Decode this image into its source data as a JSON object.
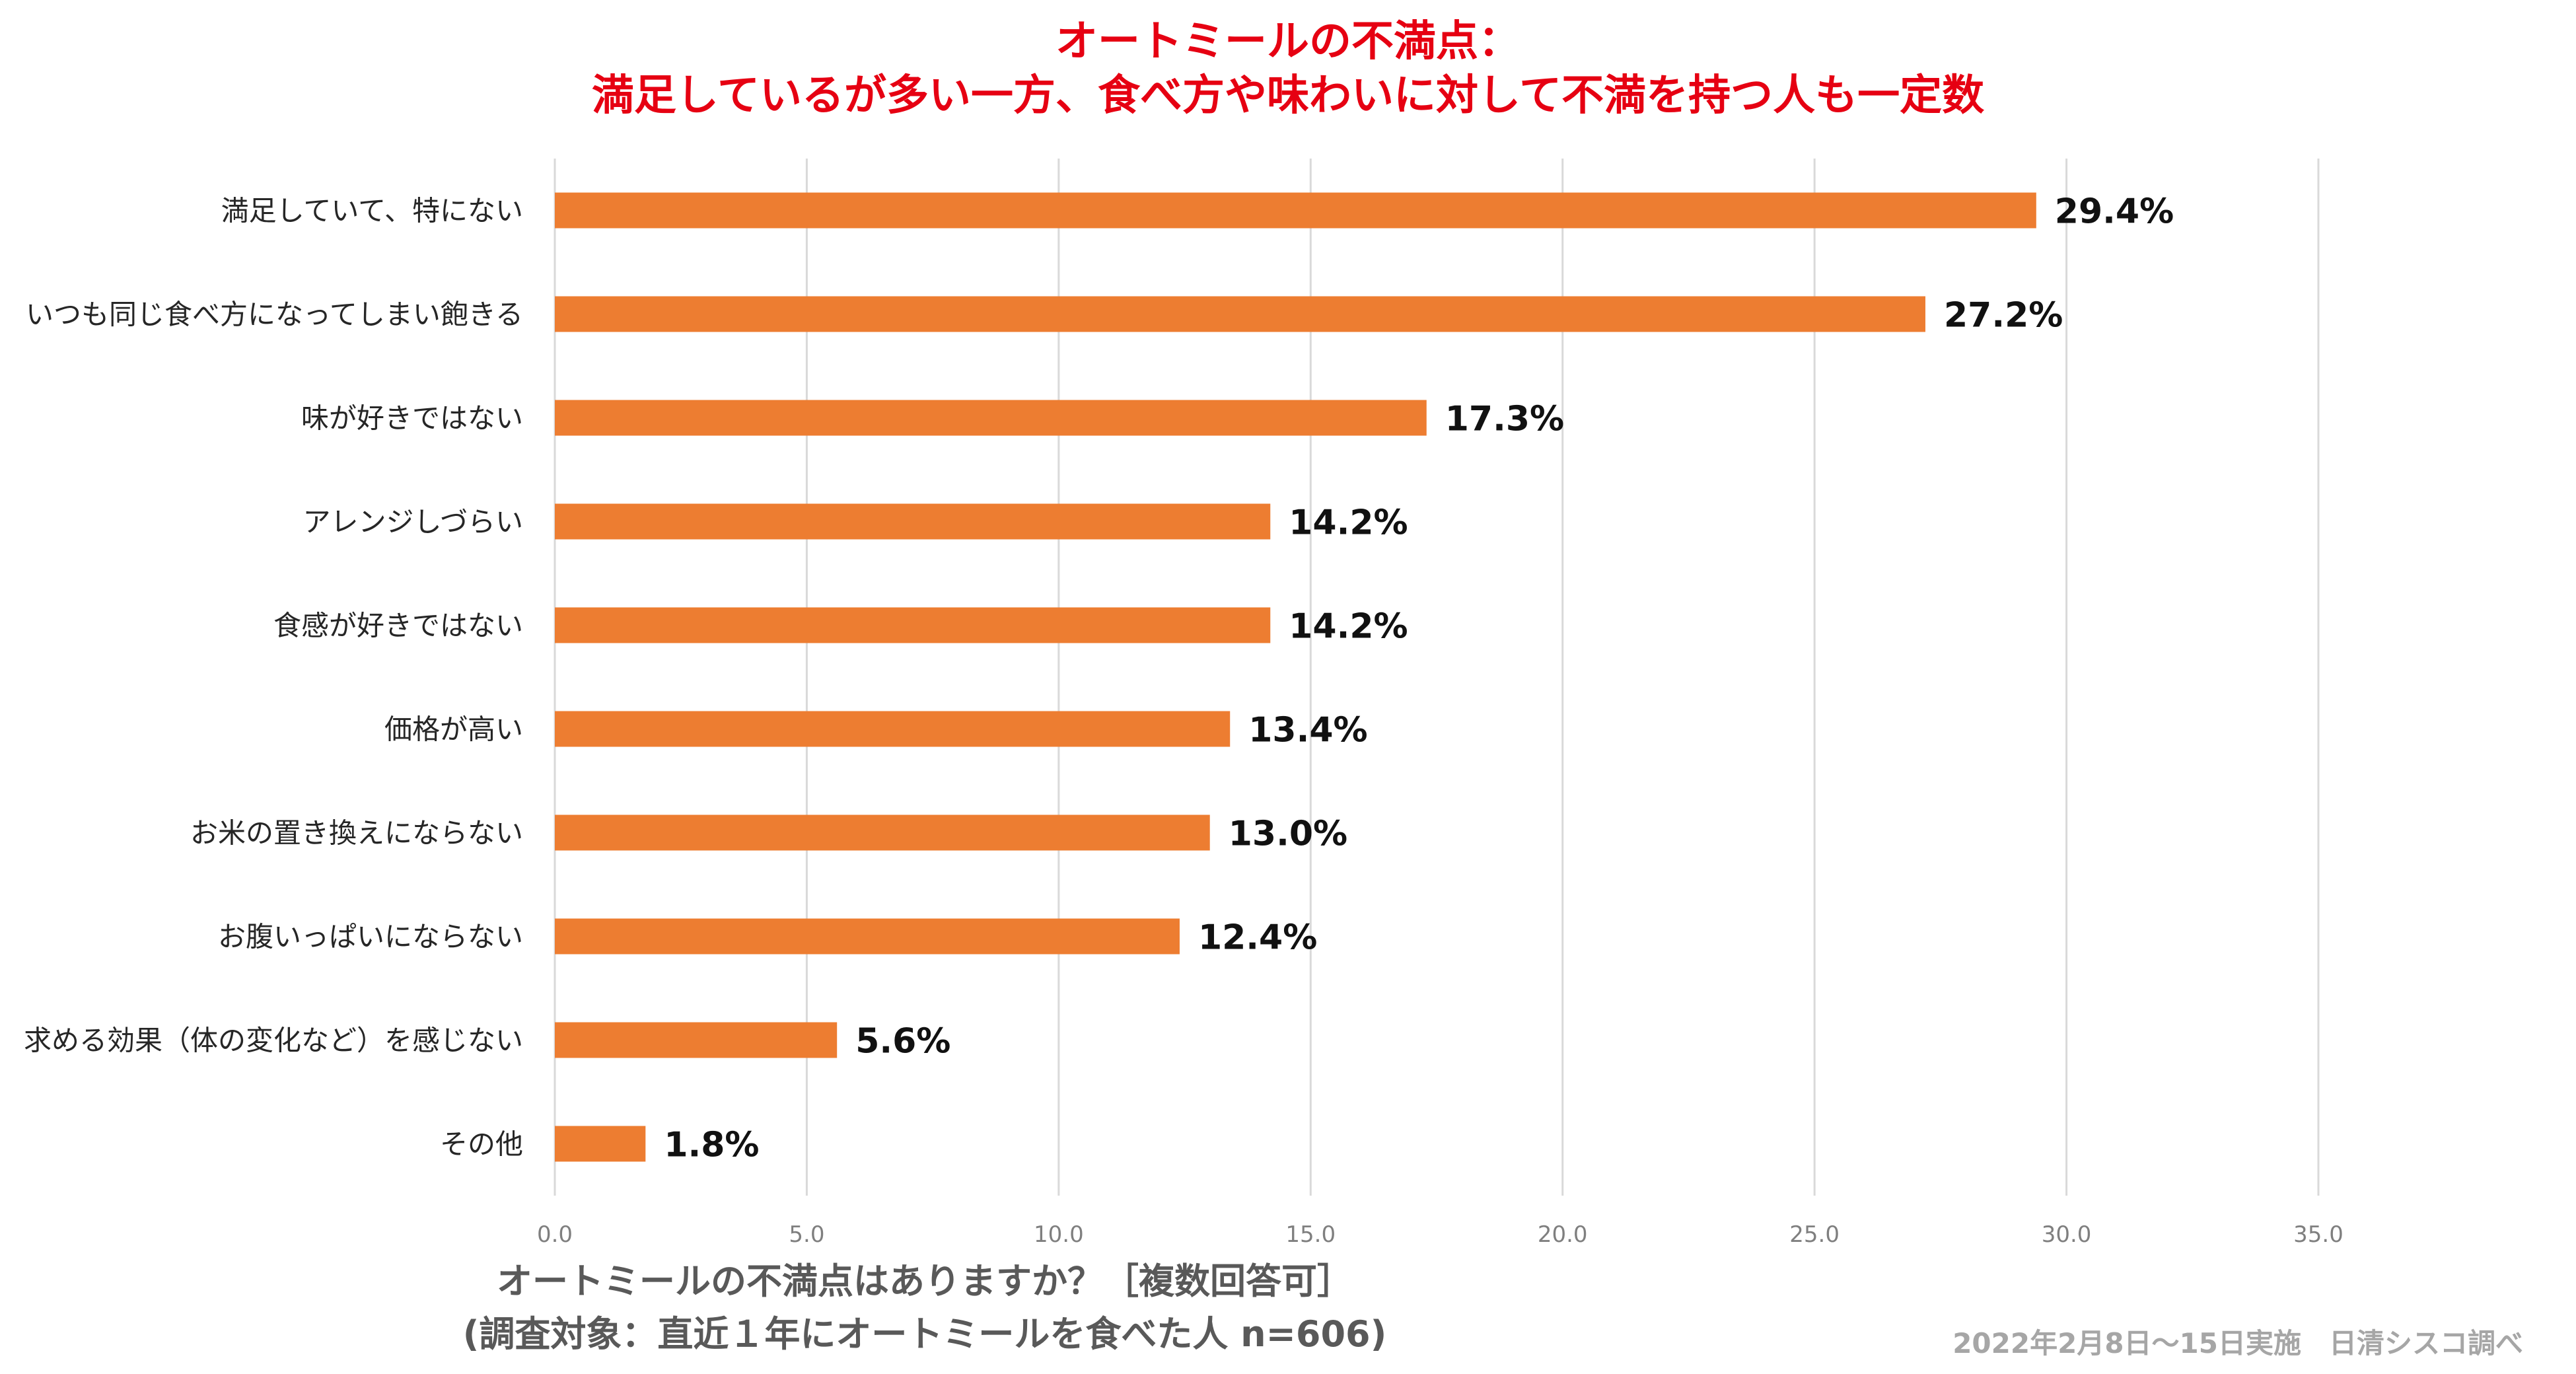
{
  "chart_data": {
    "type": "bar",
    "orientation": "horizontal",
    "title": "オートミールの不満点：",
    "subtitle": "満足しているが多い一方、食べ方や味わいに対して不満を持つ人も一定数",
    "categories": [
      "満足していて、特にない",
      "いつも同じ食べ方になってしまい飽きる",
      "味が好きではない",
      "アレンジしづらい",
      "食感が好きではない",
      "価格が高い",
      "お米の置き換えにならない",
      "お腹いっぱいにならない",
      "求める効果（体の変化など）を感じない",
      "その他"
    ],
    "values": [
      29.4,
      27.2,
      17.3,
      14.2,
      14.2,
      13.4,
      13.0,
      12.4,
      5.6,
      1.8
    ],
    "value_labels": [
      "29.4%",
      "27.2%",
      "17.3%",
      "14.2%",
      "14.2%",
      "13.4%",
      "13.0%",
      "12.4%",
      "5.6%",
      "1.8%"
    ],
    "xlim": [
      0,
      35
    ],
    "xticks": [
      "0.0",
      "5.0",
      "10.0",
      "15.0",
      "20.0",
      "25.0",
      "30.0",
      "35.0"
    ],
    "xlabel": "オートミールの不満点はありますか？［複数回答可］",
    "xlabel_sub": "(調査対象：直近１年にオートミールを食べた人 n=606)",
    "bar_color": "#ed7d31",
    "grid": true,
    "footnote": "2022年2月8日～15日実施　日清シスコ調べ"
  }
}
